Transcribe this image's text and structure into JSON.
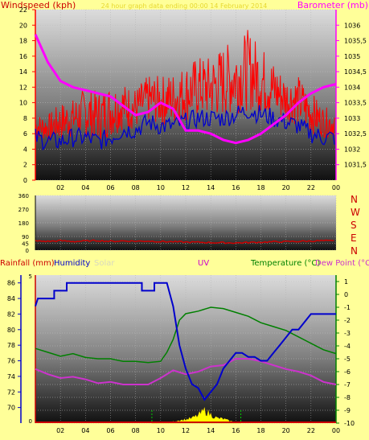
{
  "colors": {
    "background": "#ffff99",
    "wind_speed": "#ff0000",
    "wind_gust": "#0000cc",
    "barometer": "#ff00ff",
    "humidity": "#0000cc",
    "temperature": "#008000",
    "dew_point": "#cc33cc",
    "rainfall": "#cc0000",
    "solar": "#ffff00",
    "uv": "#cc0000",
    "wind_direction": "#cc0000"
  },
  "chart_data": [
    {
      "type": "line",
      "labels": {
        "left": "Windspeed (kph)",
        "center": "24 hour graph data ending 00:00 14 February 2014",
        "right": "Barometer (mb)"
      },
      "x_ticks": [
        "02",
        "04",
        "06",
        "08",
        "10",
        "12",
        "14",
        "16",
        "18",
        "20",
        "22",
        "00"
      ],
      "y_left": {
        "ylim": [
          0,
          22
        ],
        "ticks": [
          0,
          2,
          4,
          6,
          8,
          10,
          12,
          14,
          16,
          18,
          20,
          22
        ]
      },
      "y_right": {
        "ylim": [
          1031,
          1036.5
        ],
        "ticks": [
          1031.5,
          1032,
          1032.5,
          1033,
          1033.5,
          1034,
          1034.5,
          1035,
          1035.5,
          1036
        ]
      },
      "series": [
        {
          "key": "barometer",
          "axis": "right",
          "points": [
            [
              0,
              1035.7
            ],
            [
              1,
              1034.8
            ],
            [
              2,
              1034.2
            ],
            [
              3,
              1034.0
            ],
            [
              4,
              1033.9
            ],
            [
              5,
              1033.8
            ],
            [
              6,
              1033.7
            ],
            [
              7,
              1033.4
            ],
            [
              8,
              1033.1
            ],
            [
              9,
              1033.2
            ],
            [
              10,
              1033.5
            ],
            [
              11,
              1033.3
            ],
            [
              12,
              1032.6
            ],
            [
              13,
              1032.6
            ],
            [
              14,
              1032.5
            ],
            [
              15,
              1032.3
            ],
            [
              16,
              1032.2
            ],
            [
              17,
              1032.3
            ],
            [
              18,
              1032.5
            ],
            [
              19,
              1032.8
            ],
            [
              20,
              1033.1
            ],
            [
              21,
              1033.5
            ],
            [
              22,
              1033.8
            ],
            [
              23,
              1034.0
            ],
            [
              24,
              1034.1
            ]
          ]
        },
        {
          "key": "wind_average",
          "axis": "left",
          "points": [
            [
              0,
              5.5
            ],
            [
              1,
              5
            ],
            [
              2,
              5
            ],
            [
              3,
              5.5
            ],
            [
              4,
              5.5
            ],
            [
              5,
              5
            ],
            [
              6,
              5.5
            ],
            [
              7,
              6.5
            ],
            [
              8,
              6.5
            ],
            [
              9,
              7.5
            ],
            [
              10,
              7
            ],
            [
              11,
              7
            ],
            [
              12,
              7.5
            ],
            [
              13,
              8
            ],
            [
              14,
              8
            ],
            [
              15,
              8
            ],
            [
              16,
              8.5
            ],
            [
              17,
              9
            ],
            [
              18,
              8.5
            ],
            [
              19,
              8
            ],
            [
              20,
              7.5
            ],
            [
              21,
              7
            ],
            [
              22,
              6
            ],
            [
              23,
              5.5
            ],
            [
              24,
              5.5
            ]
          ]
        },
        {
          "key": "wind_gust",
          "axis": "left",
          "points": [
            [
              0,
              7
            ],
            [
              1,
              7
            ],
            [
              2,
              8.5
            ],
            [
              3,
              9
            ],
            [
              4,
              10.5
            ],
            [
              5,
              10
            ],
            [
              6,
              11
            ],
            [
              7,
              11
            ],
            [
              8,
              10.5
            ],
            [
              9,
              12
            ],
            [
              10,
              12
            ],
            [
              11,
              12.5
            ],
            [
              12,
              13.5
            ],
            [
              13,
              14.5
            ],
            [
              14,
              14.5
            ],
            [
              15,
              16
            ],
            [
              16,
              16.5
            ],
            [
              17,
              18
            ],
            [
              18,
              16
            ],
            [
              19,
              14
            ],
            [
              20,
              12
            ],
            [
              21,
              12
            ],
            [
              22,
              10
            ],
            [
              23,
              8
            ],
            [
              24,
              7.5
            ]
          ]
        }
      ]
    },
    {
      "type": "line",
      "labels": {
        "right_letters": [
          "N",
          "W",
          "S",
          "E",
          "N"
        ]
      },
      "x_ticks": [
        "02",
        "04",
        "06",
        "08",
        "10",
        "12",
        "14",
        "16",
        "18",
        "20",
        "22",
        "00"
      ],
      "y_left": {
        "ylim": [
          0,
          360
        ],
        "ticks": [
          0,
          45,
          90,
          180,
          270,
          360
        ]
      },
      "series": [
        {
          "key": "wind_direction",
          "points": [
            [
              0,
              60
            ],
            [
              1,
              58
            ],
            [
              2,
              62
            ],
            [
              3,
              57
            ],
            [
              4,
              60
            ],
            [
              5,
              63
            ],
            [
              6,
              58
            ],
            [
              7,
              61
            ],
            [
              8,
              59
            ],
            [
              9,
              60
            ],
            [
              10,
              57
            ],
            [
              11,
              55
            ],
            [
              12,
              53
            ],
            [
              13,
              52
            ],
            [
              14,
              50
            ],
            [
              15,
              49
            ],
            [
              16,
              48
            ],
            [
              17,
              50
            ],
            [
              18,
              53
            ],
            [
              19,
              55
            ],
            [
              20,
              56
            ],
            [
              21,
              58
            ],
            [
              22,
              60
            ],
            [
              23,
              62
            ],
            [
              24,
              60
            ]
          ]
        }
      ]
    },
    {
      "type": "line",
      "labels": {
        "rainfall": "Rainfall (mm)",
        "humidity": "Humidity",
        "solar": "Solar",
        "uv": "UV",
        "temperature": "Temperature (°C)",
        "dew_point": "Dew Point (°C)"
      },
      "x_ticks": [
        "02",
        "04",
        "06",
        "08",
        "10",
        "12",
        "14",
        "16",
        "18",
        "20",
        "22",
        "00"
      ],
      "y_left": {
        "ylim": [
          68,
          87
        ],
        "ticks": [
          70,
          72,
          74,
          76,
          78,
          80,
          82,
          84,
          86
        ]
      },
      "y_left_rain_ticks": [
        "0",
        "5"
      ],
      "y_right": {
        "ylim": [
          -10,
          1.5
        ],
        "ticks": [
          1,
          0,
          -1,
          -2,
          -3,
          -4,
          -5,
          -6,
          -7,
          -8,
          -9,
          -10
        ]
      },
      "series": [
        {
          "key": "humidity",
          "axis": "left",
          "points": [
            [
              0,
              83
            ],
            [
              0.2,
              84
            ],
            [
              1.5,
              84
            ],
            [
              1.5,
              85
            ],
            [
              2.5,
              85
            ],
            [
              2.5,
              86
            ],
            [
              8.5,
              86
            ],
            [
              8.5,
              85
            ],
            [
              9.5,
              85
            ],
            [
              9.5,
              86
            ],
            [
              10.5,
              86
            ],
            [
              11,
              83
            ],
            [
              11.5,
              78
            ],
            [
              12,
              75
            ],
            [
              12.5,
              73
            ],
            [
              13,
              72.5
            ],
            [
              13.5,
              71
            ],
            [
              14,
              72
            ],
            [
              14.5,
              73
            ],
            [
              15,
              75
            ],
            [
              15.5,
              76
            ],
            [
              16,
              77
            ],
            [
              16.5,
              77
            ],
            [
              17,
              76.5
            ],
            [
              17.5,
              76.5
            ],
            [
              18,
              76
            ],
            [
              18.5,
              76
            ],
            [
              19,
              77
            ],
            [
              19.5,
              78
            ],
            [
              20,
              79
            ],
            [
              20.5,
              80
            ],
            [
              21,
              80
            ],
            [
              21.5,
              81
            ],
            [
              22,
              82
            ],
            [
              24,
              82
            ]
          ]
        },
        {
          "key": "temperature",
          "axis": "right",
          "points": [
            [
              0,
              -4.2
            ],
            [
              1,
              -4.5
            ],
            [
              2,
              -4.8
            ],
            [
              3,
              -4.6
            ],
            [
              4,
              -4.9
            ],
            [
              5,
              -5.0
            ],
            [
              6,
              -5.0
            ],
            [
              7,
              -5.2
            ],
            [
              8,
              -5.2
            ],
            [
              9,
              -5.3
            ],
            [
              10,
              -5.2
            ],
            [
              10.5,
              -4.5
            ],
            [
              11,
              -3.5
            ],
            [
              11.5,
              -2
            ],
            [
              12,
              -1.5
            ],
            [
              13,
              -1.3
            ],
            [
              14,
              -1.0
            ],
            [
              15,
              -1.1
            ],
            [
              16,
              -1.4
            ],
            [
              17,
              -1.7
            ],
            [
              18,
              -2.2
            ],
            [
              19,
              -2.5
            ],
            [
              20,
              -2.8
            ],
            [
              21,
              -3.3
            ],
            [
              22,
              -3.8
            ],
            [
              23,
              -4.3
            ],
            [
              24,
              -4.6
            ]
          ]
        },
        {
          "key": "dew_point",
          "axis": "right",
          "points": [
            [
              0,
              -5.8
            ],
            [
              1,
              -6.2
            ],
            [
              2,
              -6.5
            ],
            [
              3,
              -6.4
            ],
            [
              4,
              -6.6
            ],
            [
              5,
              -6.9
            ],
            [
              6,
              -6.8
            ],
            [
              7,
              -7.0
            ],
            [
              8,
              -7.0
            ],
            [
              9,
              -7.0
            ],
            [
              10,
              -6.5
            ],
            [
              11,
              -5.9
            ],
            [
              12,
              -6.2
            ],
            [
              13,
              -6.0
            ],
            [
              14,
              -5.6
            ],
            [
              15,
              -5.5
            ],
            [
              16,
              -5.0
            ],
            [
              17,
              -5.0
            ],
            [
              18,
              -5.2
            ],
            [
              19,
              -5.5
            ],
            [
              20,
              -5.8
            ],
            [
              21,
              -6.0
            ],
            [
              22,
              -6.3
            ],
            [
              23,
              -6.8
            ],
            [
              24,
              -7.0
            ]
          ]
        },
        {
          "key": "rainfall",
          "axis": "rain",
          "points": [
            [
              0,
              0
            ],
            [
              24,
              0
            ]
          ]
        },
        {
          "key": "solar",
          "axis": "solar",
          "points": [
            [
              9.3,
              0
            ],
            [
              10,
              0.02
            ],
            [
              10.5,
              0.05
            ],
            [
              11,
              0.1
            ],
            [
              11.5,
              0.2
            ],
            [
              12,
              0.25
            ],
            [
              12.5,
              0.35
            ],
            [
              13,
              0.55
            ],
            [
              13.5,
              0.9
            ],
            [
              14,
              0.6
            ],
            [
              14.5,
              0.35
            ],
            [
              15,
              0.3
            ],
            [
              15.5,
              0.15
            ],
            [
              16,
              0.05
            ],
            [
              16.4,
              0
            ]
          ]
        }
      ]
    }
  ]
}
